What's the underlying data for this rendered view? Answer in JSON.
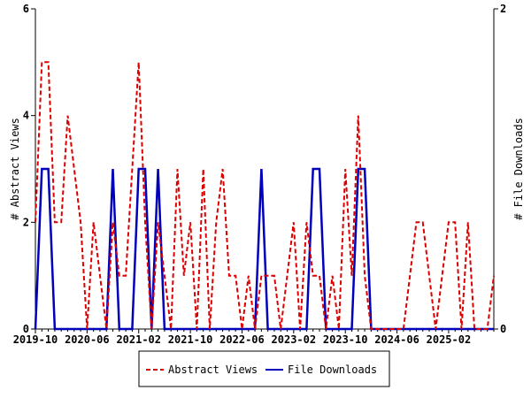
{
  "chart_data": {
    "type": "line",
    "title": "",
    "xlabel": "",
    "ylabel": "# Abstract Views",
    "y2label": "# File Downloads",
    "ylim": [
      0,
      6
    ],
    "y2lim": [
      0,
      2
    ],
    "yticks": [
      "0",
      "2",
      "4",
      "6"
    ],
    "y2ticks": [
      "0",
      "2"
    ],
    "x_start": "2019-10",
    "x_step": "1 month",
    "xtick_labels": [
      "2019-10",
      "2020-06",
      "2021-02",
      "2021-10",
      "2022-06",
      "2023-02",
      "2023-10",
      "2024-06",
      "2025-02"
    ],
    "legend_placement": "bottom",
    "series": [
      {
        "name": "Abstract Views",
        "axis": "left",
        "color": "#dd0000",
        "style": "dashed",
        "values": [
          2,
          5,
          5,
          2,
          2,
          4,
          3,
          2,
          0,
          2,
          1,
          0,
          2,
          1,
          1,
          3,
          5,
          2,
          0,
          2,
          1,
          0,
          3,
          1,
          2,
          0,
          3,
          0,
          2,
          3,
          1,
          1,
          0,
          1,
          0,
          1,
          1,
          1,
          0,
          1,
          2,
          0,
          2,
          1,
          1,
          0,
          1,
          0,
          3,
          1,
          4,
          1,
          0,
          0,
          0,
          0,
          0,
          0,
          1,
          2,
          2,
          1,
          0,
          1,
          2,
          2,
          0,
          2,
          0,
          0,
          0,
          1
        ]
      },
      {
        "name": "File Downloads",
        "axis": "right",
        "color": "#0000bb",
        "style": "solid",
        "values": [
          0,
          1,
          1,
          0,
          0,
          0,
          0,
          0,
          0,
          0,
          0,
          0,
          1,
          0,
          0,
          0,
          1,
          1,
          0,
          1,
          0,
          0,
          0,
          0,
          0,
          0,
          0,
          0,
          0,
          0,
          0,
          0,
          0,
          0,
          0,
          1,
          0,
          0,
          0,
          0,
          0,
          0,
          0,
          1,
          1,
          0,
          0,
          0,
          0,
          0,
          1,
          1,
          0,
          0,
          0,
          0,
          0,
          0,
          0,
          0,
          0,
          0,
          0,
          0,
          0,
          0,
          0,
          0,
          0,
          0,
          0,
          0
        ]
      }
    ]
  }
}
